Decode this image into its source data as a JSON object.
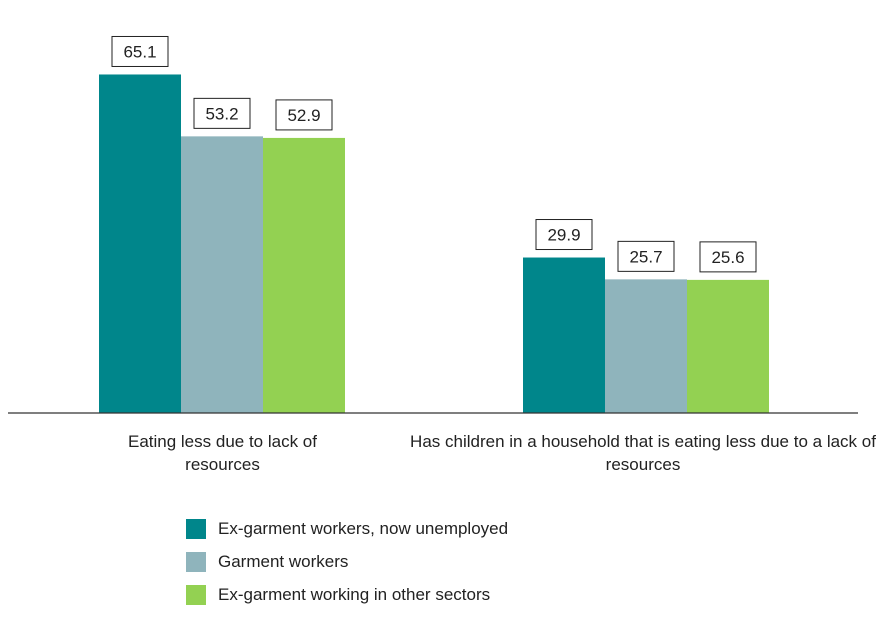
{
  "chart_data": {
    "type": "bar",
    "title": "",
    "xlabel": "",
    "ylabel": "",
    "ylim": [
      0,
      72
    ],
    "grid": false,
    "legend_position": "bottom",
    "categories": [
      "Eating less due to lack of resources",
      "Has children in a household that is eating less due to a lack of resources"
    ],
    "series": [
      {
        "name": "Ex-garment workers, now unemployed",
        "color": "#00868b",
        "values": [
          65.1,
          29.9
        ]
      },
      {
        "name": "Garment workers",
        "color": "#8fb4bc",
        "values": [
          53.2,
          25.7
        ]
      },
      {
        "name": "Ex-garment working in other sectors",
        "color": "#93d152",
        "values": [
          52.9,
          25.6
        ]
      }
    ]
  }
}
